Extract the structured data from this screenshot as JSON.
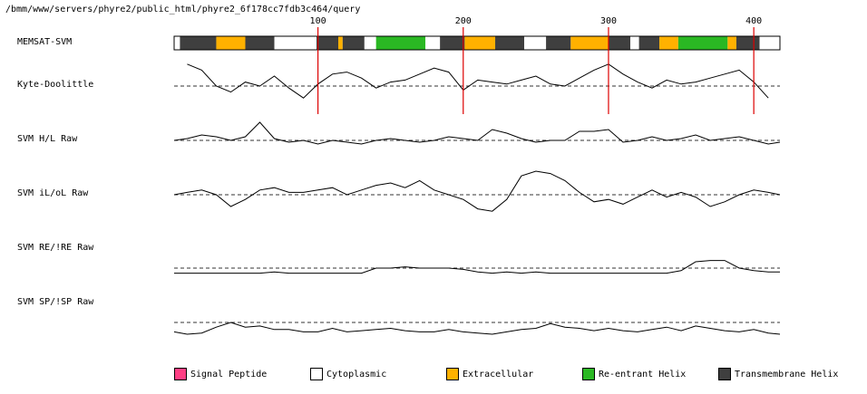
{
  "path_title": "/bmm/www/servers/phyre2/public_html/phyre2_6f178cc7fdb3c464/query",
  "chart_data": {
    "type": "line",
    "x_ticks": [
      100,
      200,
      300,
      400
    ],
    "x_range": [
      1,
      418
    ],
    "memsat": {
      "label": "MEMSAT-SVM",
      "segments": [
        {
          "start": 1,
          "end": 5,
          "type": "cytoplasmic"
        },
        {
          "start": 5,
          "end": 30,
          "type": "transmembrane"
        },
        {
          "start": 30,
          "end": 50,
          "type": "extracellular"
        },
        {
          "start": 50,
          "end": 70,
          "type": "transmembrane"
        },
        {
          "start": 70,
          "end": 99,
          "type": "cytoplasmic"
        },
        {
          "start": 99,
          "end": 114,
          "type": "transmembrane"
        },
        {
          "start": 114,
          "end": 117,
          "type": "extracellular"
        },
        {
          "start": 117,
          "end": 132,
          "type": "transmembrane"
        },
        {
          "start": 132,
          "end": 140,
          "type": "cytoplasmic"
        },
        {
          "start": 140,
          "end": 174,
          "type": "reentrant"
        },
        {
          "start": 174,
          "end": 184,
          "type": "cytoplasmic"
        },
        {
          "start": 184,
          "end": 201,
          "type": "transmembrane"
        },
        {
          "start": 201,
          "end": 222,
          "type": "extracellular"
        },
        {
          "start": 222,
          "end": 242,
          "type": "transmembrane"
        },
        {
          "start": 242,
          "end": 257,
          "type": "cytoplasmic"
        },
        {
          "start": 257,
          "end": 274,
          "type": "transmembrane"
        },
        {
          "start": 274,
          "end": 300,
          "type": "extracellular"
        },
        {
          "start": 300,
          "end": 315,
          "type": "transmembrane"
        },
        {
          "start": 315,
          "end": 321,
          "type": "cytoplasmic"
        },
        {
          "start": 321,
          "end": 335,
          "type": "transmembrane"
        },
        {
          "start": 335,
          "end": 348,
          "type": "extracellular"
        },
        {
          "start": 348,
          "end": 382,
          "type": "reentrant"
        },
        {
          "start": 382,
          "end": 388,
          "type": "extracellular"
        },
        {
          "start": 388,
          "end": 404,
          "type": "transmembrane"
        },
        {
          "start": 404,
          "end": 418,
          "type": "cytoplasmic"
        }
      ]
    },
    "series": [
      {
        "name": "Kyte-Doolittle",
        "x": [
          10,
          20,
          30,
          40,
          50,
          60,
          70,
          80,
          90,
          100,
          110,
          120,
          130,
          140,
          150,
          160,
          170,
          180,
          190,
          200,
          210,
          220,
          230,
          240,
          250,
          260,
          270,
          280,
          290,
          300,
          310,
          320,
          330,
          340,
          350,
          360,
          370,
          380,
          390,
          400,
          410
        ],
        "y": [
          1.1,
          0.8,
          0.0,
          -0.3,
          0.2,
          0.0,
          0.5,
          -0.1,
          -0.6,
          0.1,
          0.6,
          0.7,
          0.4,
          -0.1,
          0.2,
          0.3,
          0.6,
          0.9,
          0.7,
          -0.2,
          0.3,
          0.2,
          0.1,
          0.3,
          0.5,
          0.1,
          0.0,
          0.4,
          0.8,
          1.1,
          0.6,
          0.2,
          -0.1,
          0.3,
          0.1,
          0.2,
          0.4,
          0.6,
          0.8,
          0.2,
          -0.6
        ]
      },
      {
        "name": "SVM H/L Raw",
        "x": [
          1,
          10,
          20,
          30,
          40,
          50,
          60,
          70,
          80,
          90,
          100,
          110,
          120,
          130,
          140,
          150,
          160,
          170,
          180,
          190,
          200,
          210,
          220,
          230,
          240,
          250,
          260,
          270,
          280,
          290,
          300,
          310,
          320,
          330,
          340,
          350,
          360,
          370,
          380,
          390,
          400,
          410,
          418
        ],
        "y": [
          0.0,
          0.1,
          0.3,
          0.2,
          0.0,
          0.2,
          1.0,
          0.1,
          -0.1,
          0.0,
          -0.2,
          0.0,
          -0.1,
          -0.2,
          0.0,
          0.1,
          0.0,
          -0.1,
          0.0,
          0.2,
          0.1,
          0.0,
          0.6,
          0.4,
          0.1,
          -0.1,
          0.0,
          0.0,
          0.5,
          0.5,
          0.6,
          -0.1,
          0.0,
          0.2,
          0.0,
          0.1,
          0.3,
          0.0,
          0.1,
          0.2,
          0.0,
          -0.2,
          -0.1
        ]
      },
      {
        "name": "SVM iL/oL Raw",
        "x": [
          1,
          10,
          20,
          30,
          40,
          50,
          60,
          70,
          80,
          90,
          100,
          110,
          120,
          130,
          140,
          150,
          160,
          170,
          180,
          190,
          200,
          210,
          220,
          230,
          240,
          250,
          260,
          270,
          280,
          290,
          300,
          310,
          320,
          330,
          340,
          350,
          360,
          370,
          380,
          390,
          400,
          410,
          418
        ],
        "y": [
          0.0,
          0.1,
          0.2,
          0.0,
          -0.5,
          -0.2,
          0.2,
          0.3,
          0.1,
          0.1,
          0.2,
          0.3,
          0.0,
          0.2,
          0.4,
          0.5,
          0.3,
          0.6,
          0.2,
          0.0,
          -0.2,
          -0.6,
          -0.7,
          -0.2,
          0.8,
          1.0,
          0.9,
          0.6,
          0.1,
          -0.3,
          -0.2,
          -0.4,
          -0.1,
          0.2,
          -0.1,
          0.1,
          -0.1,
          -0.5,
          -0.3,
          0.0,
          0.2,
          0.1,
          0.0
        ]
      },
      {
        "name": "SVM RE/!RE Raw",
        "x": [
          1,
          10,
          20,
          30,
          40,
          50,
          60,
          70,
          80,
          90,
          100,
          110,
          120,
          130,
          140,
          150,
          160,
          170,
          180,
          190,
          200,
          210,
          220,
          230,
          240,
          250,
          260,
          270,
          280,
          290,
          300,
          310,
          320,
          330,
          340,
          350,
          360,
          370,
          380,
          390,
          400,
          410,
          418
        ],
        "y": [
          -0.4,
          -0.4,
          -0.4,
          -0.4,
          -0.4,
          -0.4,
          -0.4,
          -0.3,
          -0.4,
          -0.4,
          -0.4,
          -0.4,
          -0.4,
          -0.4,
          0.0,
          0.0,
          0.1,
          0.0,
          0.0,
          0.0,
          -0.1,
          -0.3,
          -0.4,
          -0.3,
          -0.4,
          -0.3,
          -0.4,
          -0.4,
          -0.4,
          -0.4,
          -0.4,
          -0.4,
          -0.4,
          -0.4,
          -0.4,
          -0.2,
          0.5,
          0.6,
          0.6,
          0.0,
          -0.2,
          -0.3,
          -0.3
        ]
      },
      {
        "name": "SVM SP/!SP Raw",
        "x": [
          1,
          10,
          20,
          30,
          40,
          50,
          60,
          70,
          80,
          90,
          100,
          110,
          120,
          130,
          140,
          150,
          160,
          170,
          180,
          190,
          200,
          210,
          220,
          230,
          240,
          250,
          260,
          270,
          280,
          290,
          300,
          310,
          320,
          330,
          340,
          350,
          360,
          370,
          380,
          390,
          400,
          410,
          418
        ],
        "y": [
          -0.8,
          -1.0,
          -0.9,
          -0.4,
          0.0,
          -0.4,
          -0.3,
          -0.6,
          -0.6,
          -0.8,
          -0.8,
          -0.5,
          -0.8,
          -0.7,
          -0.6,
          -0.5,
          -0.7,
          -0.8,
          -0.8,
          -0.6,
          -0.8,
          -0.9,
          -1.0,
          -0.8,
          -0.6,
          -0.5,
          -0.1,
          -0.4,
          -0.5,
          -0.7,
          -0.5,
          -0.7,
          -0.8,
          -0.6,
          -0.4,
          -0.7,
          -0.3,
          -0.5,
          -0.7,
          -0.8,
          -0.6,
          -0.9,
          -1.0
        ]
      }
    ],
    "legend": [
      {
        "label": "Signal Peptide",
        "color": "#ff3f84"
      },
      {
        "label": "Cytoplasmic",
        "color": "#ffffff"
      },
      {
        "label": "Extracellular",
        "color": "#ffb100"
      },
      {
        "label": "Re-entrant Helix",
        "color": "#2ab823"
      },
      {
        "label": "Transmembrane Helix",
        "color": "#3f3f3f"
      }
    ],
    "colors": {
      "cytoplasmic": "#ffffff",
      "extracellular": "#ffb100",
      "reentrant": "#2ab823",
      "transmembrane": "#3f3f3f",
      "signal": "#ff3f84",
      "marker": "#dd0000"
    }
  }
}
